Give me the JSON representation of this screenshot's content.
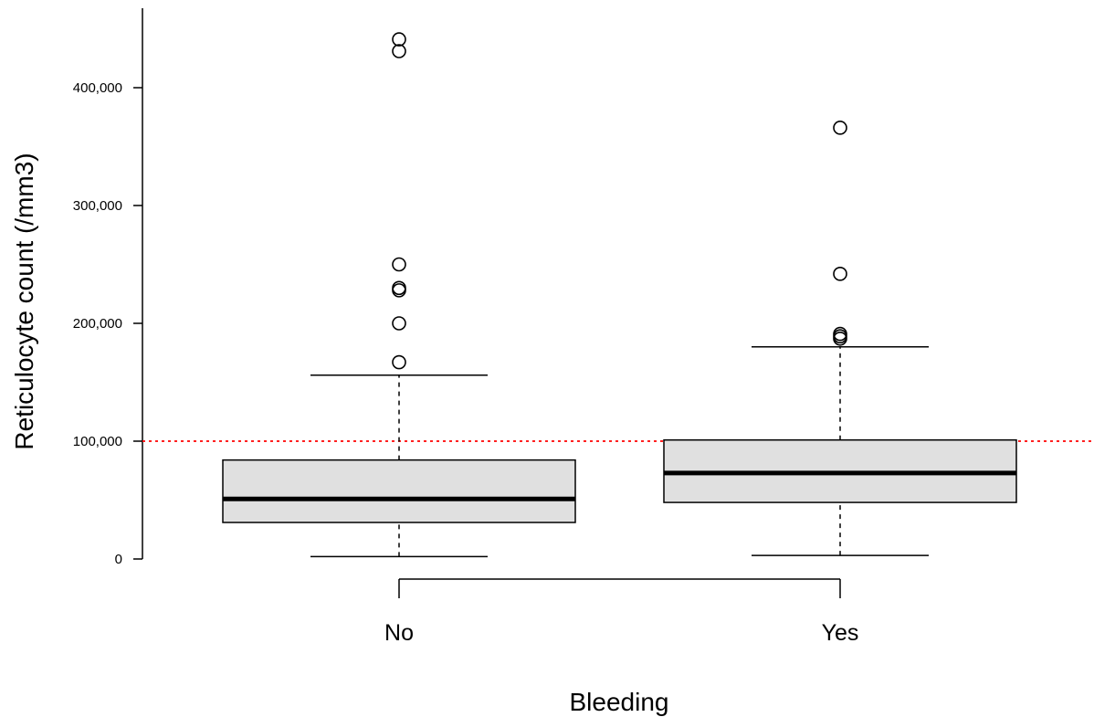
{
  "chart_data": {
    "type": "boxplot",
    "title": "",
    "xlabel": "Bleeding",
    "ylabel": "Reticulocyte count (/mm3)",
    "categories": [
      "No",
      "Yes"
    ],
    "ylim": [
      0,
      470000
    ],
    "y_ticks": [
      0,
      100000,
      200000,
      300000,
      400000
    ],
    "y_tick_labels": [
      "0",
      "100,000",
      "200,000",
      "300,000",
      "400,000"
    ],
    "reference_line": {
      "y": 100000,
      "color": "#ff0000",
      "style": "dotted"
    },
    "box_fill": "#e0e0e0",
    "groups": [
      {
        "category": "No",
        "whisker_low": 2000,
        "q1": 31000,
        "median": 51000,
        "q3": 84000,
        "whisker_high": 156000,
        "outliers": [
          167000,
          200000,
          228000,
          230000,
          250000,
          431000,
          441000
        ]
      },
      {
        "category": "Yes",
        "whisker_low": 3000,
        "q1": 48000,
        "median": 73000,
        "q3": 101000,
        "whisker_high": 180000,
        "outliers": [
          187000,
          189000,
          191000,
          242000,
          366000
        ]
      }
    ],
    "grid": false,
    "legend": "none"
  }
}
